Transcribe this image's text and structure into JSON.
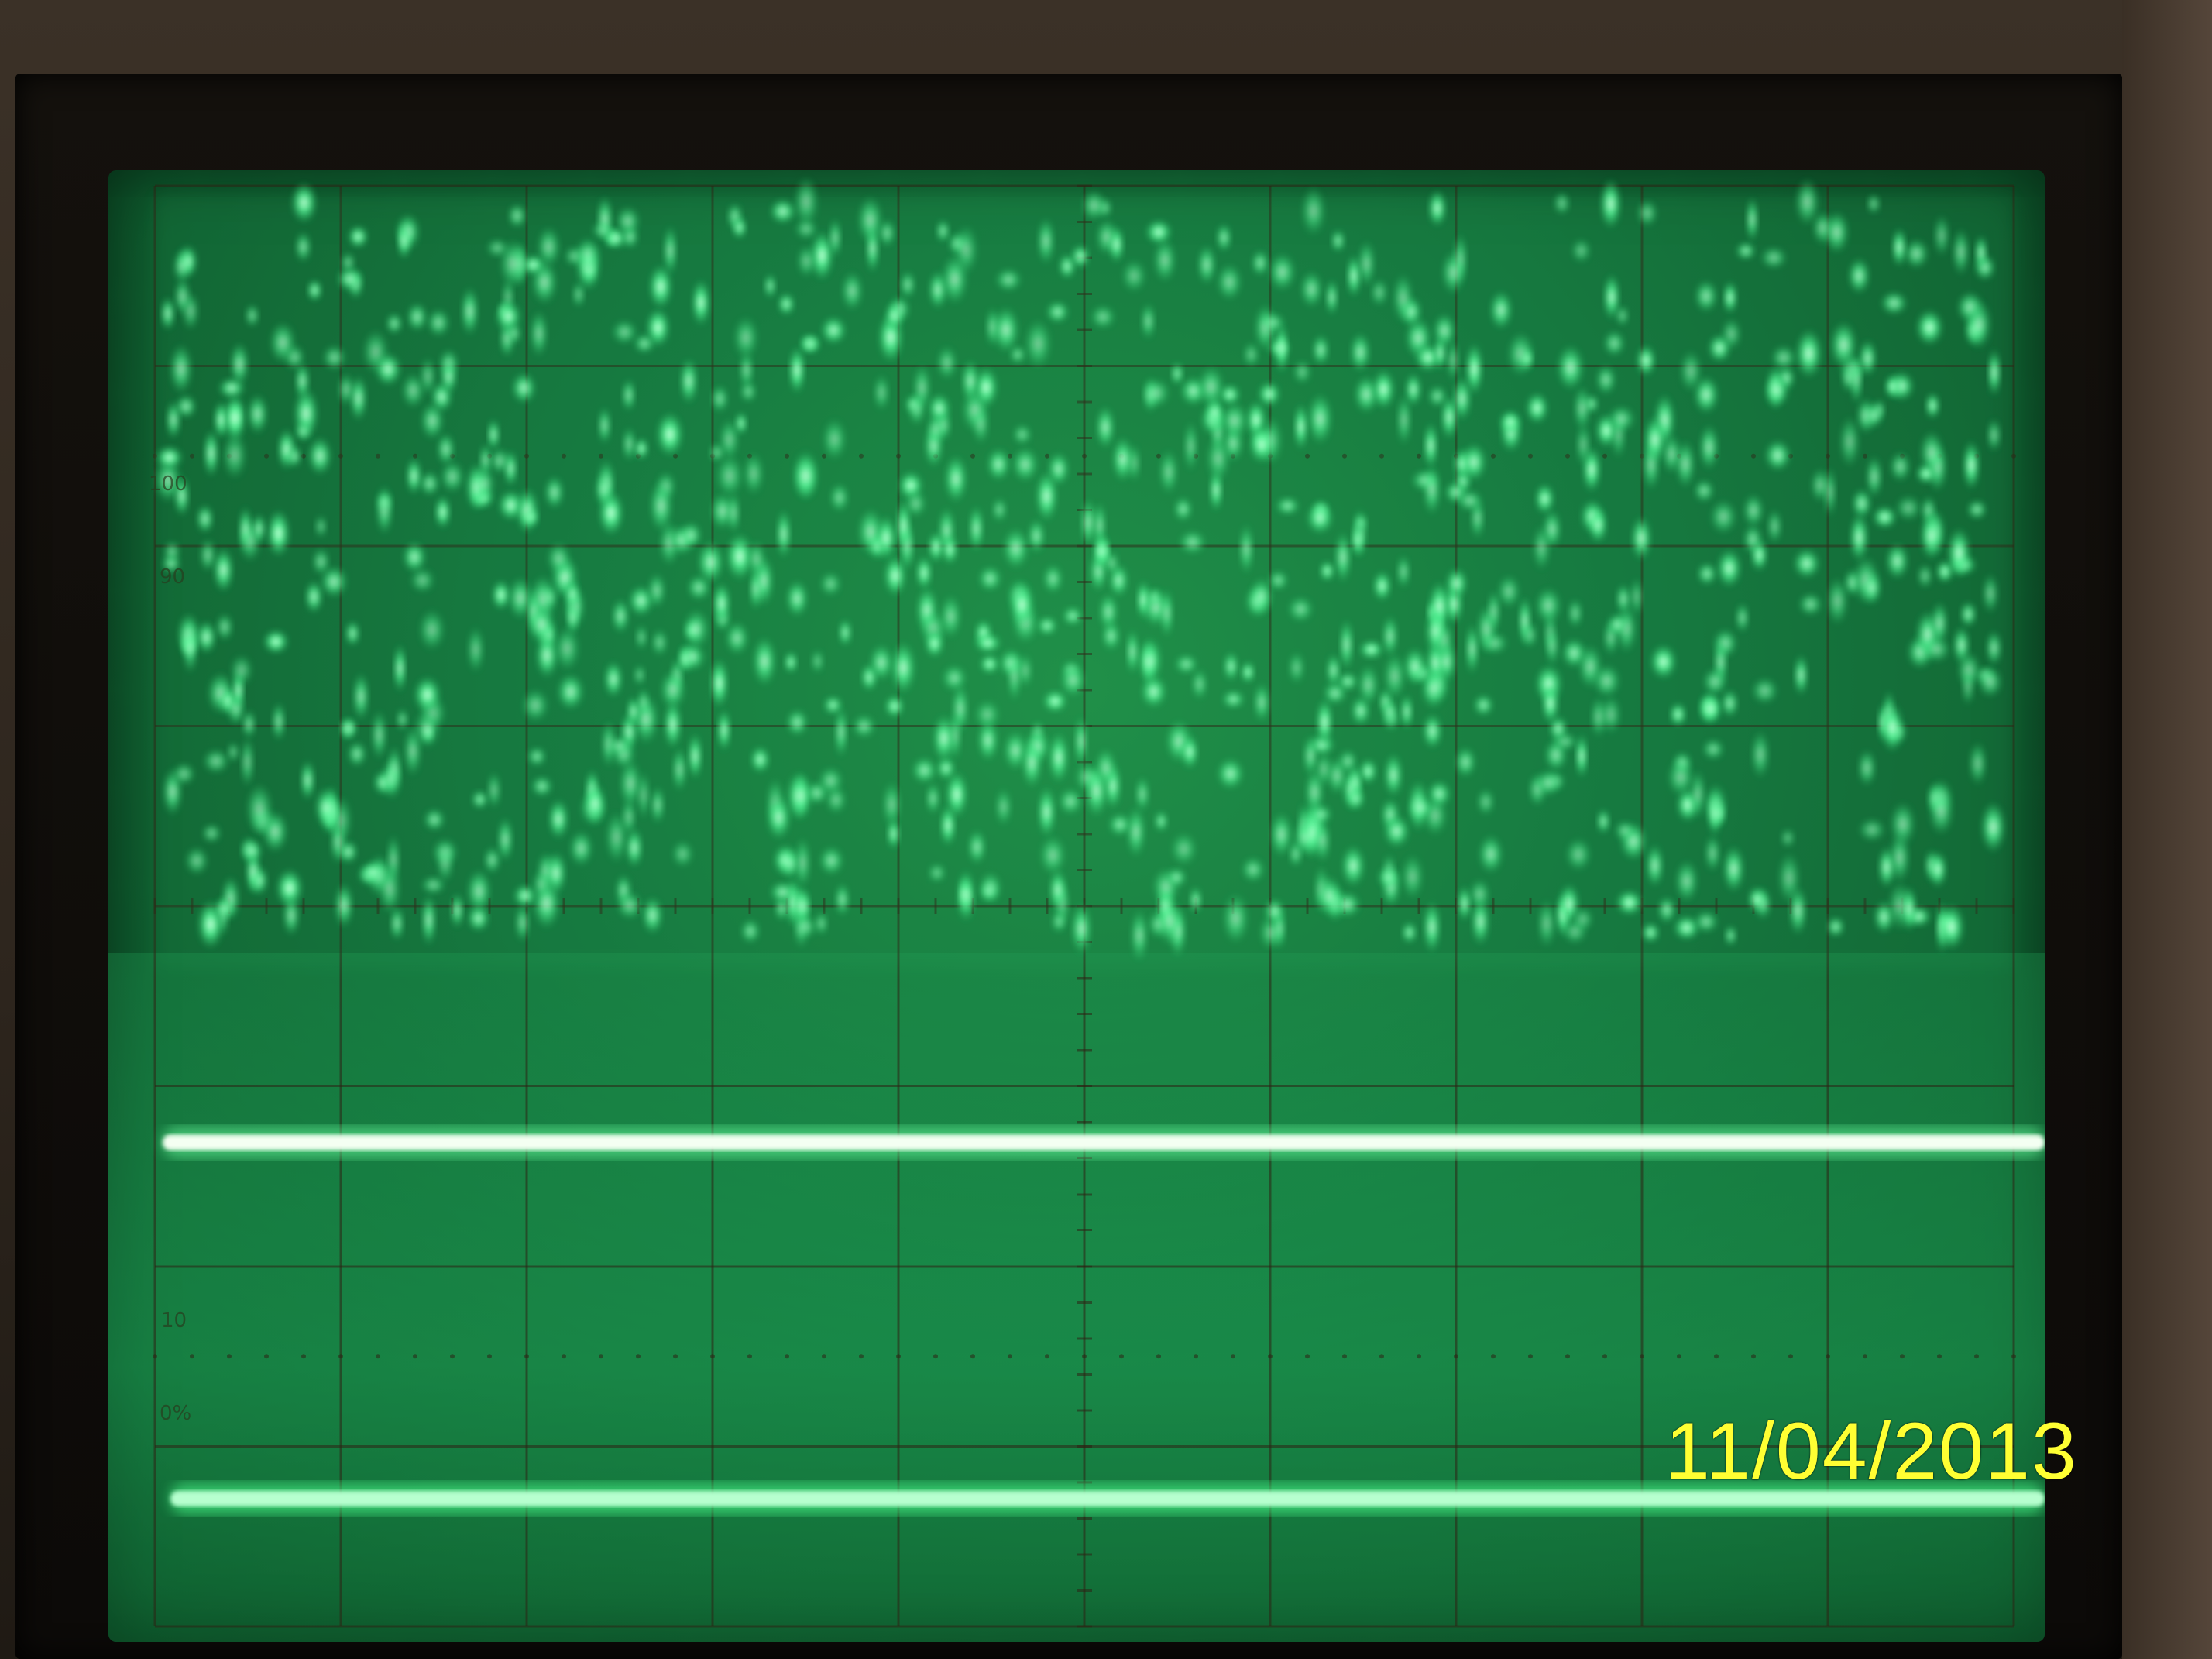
{
  "photo": {
    "subject": "oscilloscope-crt-display",
    "phosphor_color": "#3dff8f",
    "screen_color": "#13703a",
    "timestamp_color": "#ffff33"
  },
  "graticule": {
    "left_labels": [
      "100",
      "90",
      "10",
      "0%"
    ]
  },
  "timestamp": {
    "text": "11/04/2013"
  },
  "icons": [
    "oscilloscope-screen-icon"
  ]
}
